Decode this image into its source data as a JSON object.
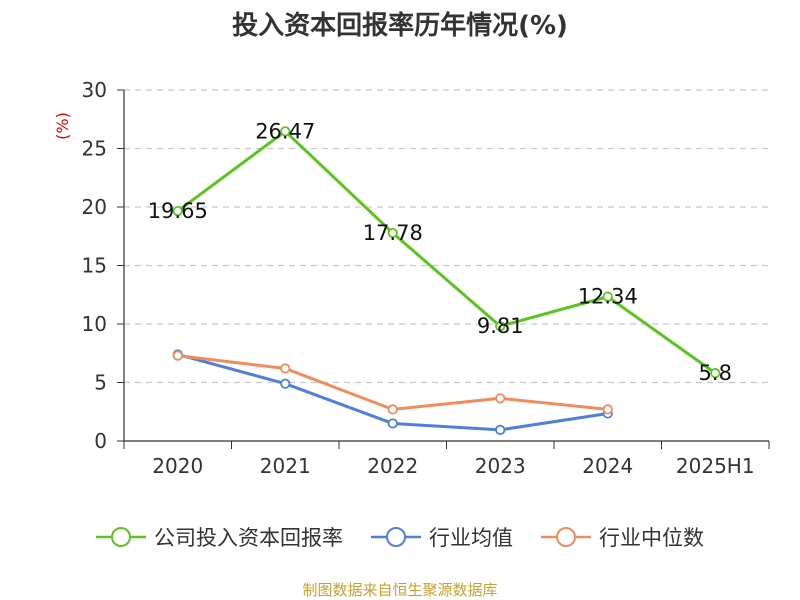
{
  "chart_data": {
    "type": "line",
    "title": "投入资本回报率历年情况(%)",
    "ylabel": "(%)",
    "xlabel": "",
    "categories": [
      "2020",
      "2021",
      "2022",
      "2023",
      "2024",
      "2025H1"
    ],
    "ylim": [
      0,
      30
    ],
    "yticks": [
      "0",
      "5",
      "10",
      "15",
      "20",
      "25",
      "30"
    ],
    "grid": true,
    "legend_position": "bottom",
    "series": [
      {
        "name": "公司投入资本回报率",
        "color": "#5cc41e",
        "values": [
          19.65,
          26.47,
          17.78,
          9.81,
          12.34,
          5.8
        ],
        "labels": [
          "19.65",
          "26.47",
          "17.78",
          "9.81",
          "12.34",
          "5.8"
        ]
      },
      {
        "name": "行业均值",
        "color": "#4f7fdb",
        "values": [
          7.4,
          4.9,
          1.5,
          0.95,
          2.35,
          null
        ]
      },
      {
        "name": "行业中位数",
        "color": "#f28c5c",
        "values": [
          7.3,
          6.2,
          2.7,
          3.65,
          2.7,
          null
        ]
      }
    ]
  },
  "source": "制图数据来自恒生聚源数据库"
}
